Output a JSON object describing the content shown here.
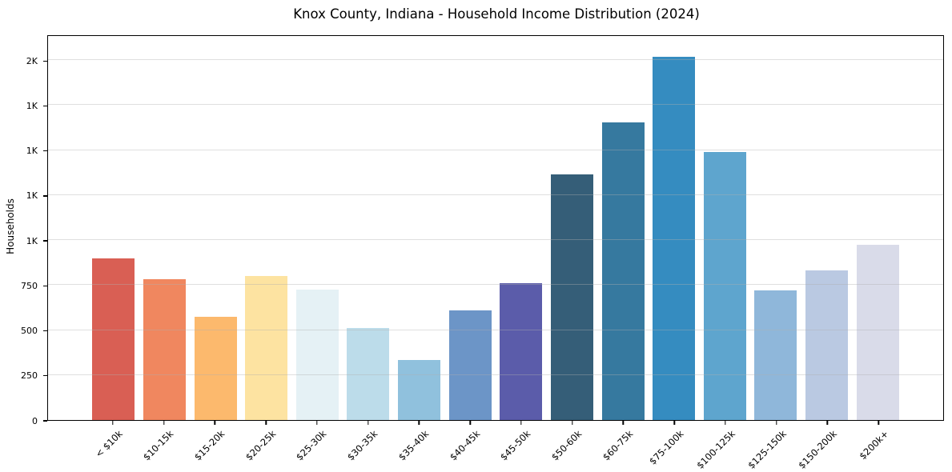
{
  "chart_data": {
    "type": "bar",
    "title": "Knox County, Indiana - Household Income Distribution (2024)",
    "xlabel": "",
    "ylabel": "Households",
    "categories": [
      "< $10k",
      "$10-15k",
      "$15-20k",
      "$20-25k",
      "$25-30k",
      "$30-35k",
      "$35-40k",
      "$40-45k",
      "$45-50k",
      "$50-60k",
      "$60-75k",
      "$75-100k",
      "$100-125k",
      "$125-150k",
      "$150-200k",
      "$200k+"
    ],
    "values": [
      900,
      785,
      575,
      800,
      725,
      510,
      335,
      610,
      760,
      1365,
      1655,
      2020,
      1490,
      720,
      830,
      975
    ],
    "bar_colors": [
      "#d95f54",
      "#f0875f",
      "#fcb96d",
      "#fde3a1",
      "#e5f1f5",
      "#bcdcea",
      "#90c1dd",
      "#6c95c7",
      "#5b5caa",
      "#355e78",
      "#36799f",
      "#358cc0",
      "#5ea5ce",
      "#8fb7da",
      "#bac9e2",
      "#d9dbe9"
    ],
    "ylim": [
      0,
      2130
    ],
    "yticks": [
      {
        "value": 0,
        "label": "0"
      },
      {
        "value": 250,
        "label": "250"
      },
      {
        "value": 500,
        "label": "500"
      },
      {
        "value": 750,
        "label": "750"
      },
      {
        "value": 1000,
        "label": "1K"
      },
      {
        "value": 1250,
        "label": "1K"
      },
      {
        "value": 1500,
        "label": "1K"
      },
      {
        "value": 1750,
        "label": "1K"
      },
      {
        "value": 2000,
        "label": "2K"
      }
    ],
    "grid": true,
    "legend": "none"
  },
  "colors": {
    "background": "#ffffff",
    "spine": "#000000",
    "gridline": "rgba(176,176,176,0.4)",
    "text": "#000000"
  }
}
